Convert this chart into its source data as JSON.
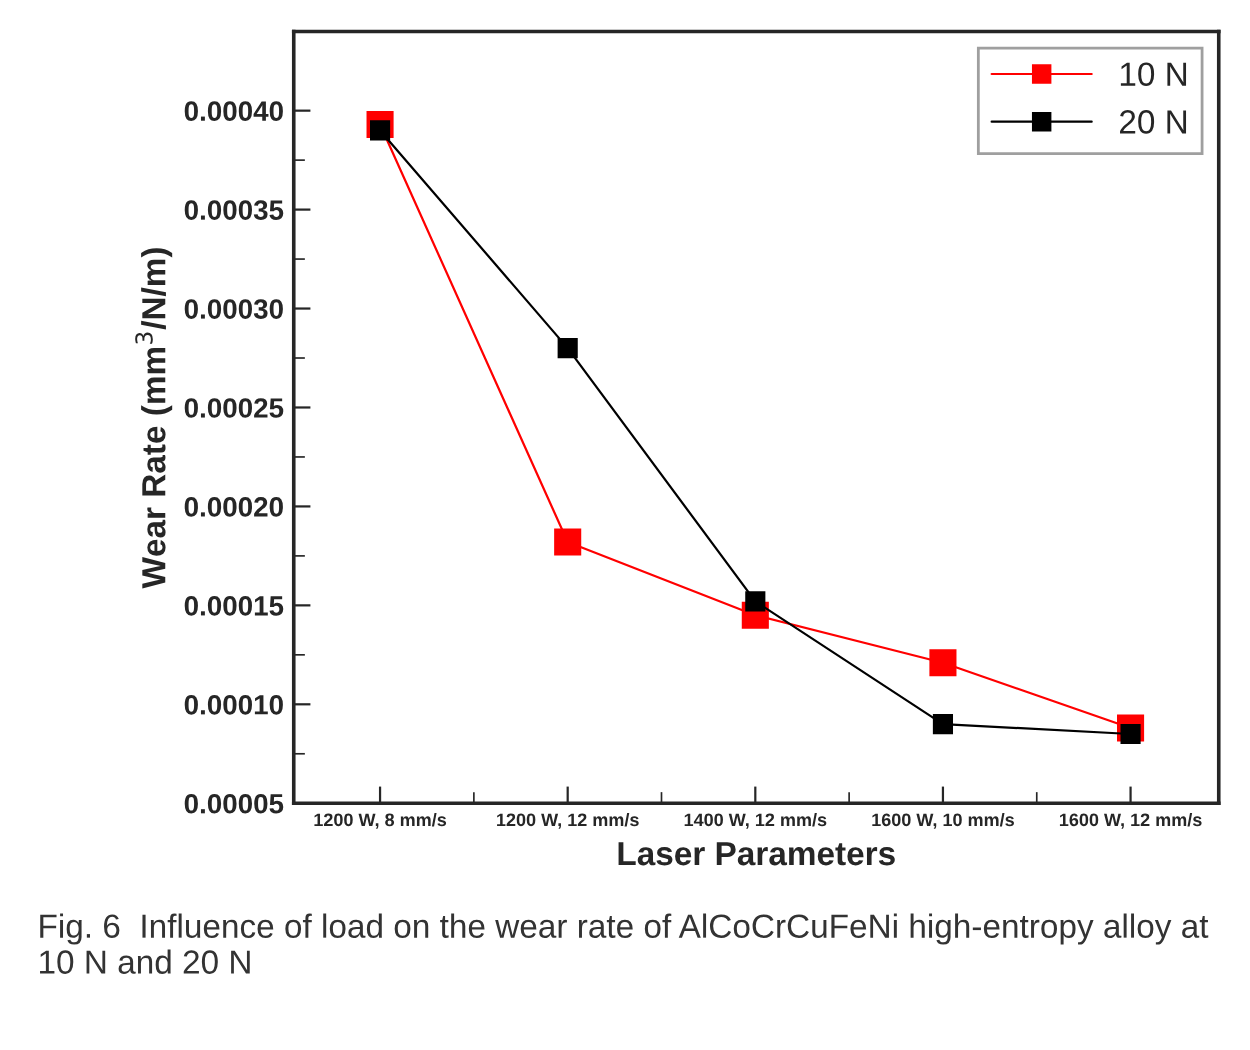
{
  "chart_data": {
    "type": "line",
    "xlabel": "Laser Parameters",
    "ylabel": "Wear Rate (mm$^{3}$/N/m)",
    "categories": [
      "1200 W, 8 mm/s",
      "1200 W, 12 mm/s",
      "1400 W, 12 mm/s",
      "1600 W, 10 mm/s",
      "1600 W, 12 mm/s"
    ],
    "series": [
      {
        "name": "10 N",
        "color": "#ff0000",
        "values": [
          0.000393,
          0.000182,
          0.000145,
          0.000121,
          8.8e-05
        ]
      },
      {
        "name": "20 N",
        "color": "#000000",
        "values": [
          0.00039,
          0.00028,
          0.000152,
          9e-05,
          8.5e-05
        ]
      }
    ],
    "ylim": [
      5e-05,
      0.00044
    ],
    "yticks": [
      {
        "value": 5e-05,
        "label": "0.00005"
      },
      {
        "value": 0.0001,
        "label": "0.00010"
      },
      {
        "value": 0.00015,
        "label": "0.00015"
      },
      {
        "value": 0.0002,
        "label": "0.00020"
      },
      {
        "value": 0.00025,
        "label": "0.00025"
      },
      {
        "value": 0.0003,
        "label": "0.00030"
      },
      {
        "value": 0.00035,
        "label": "0.00035"
      },
      {
        "value": 0.0004,
        "label": "0.00040"
      }
    ],
    "grid": false,
    "legend": "top right",
    "marker": "square",
    "line_style": "solid",
    "annotations": [
      "Fig. 6  Influence of load on the wear rate of AlCoCrCuFeNi high-entropy alloy at 10 N and 20 N"
    ]
  }
}
